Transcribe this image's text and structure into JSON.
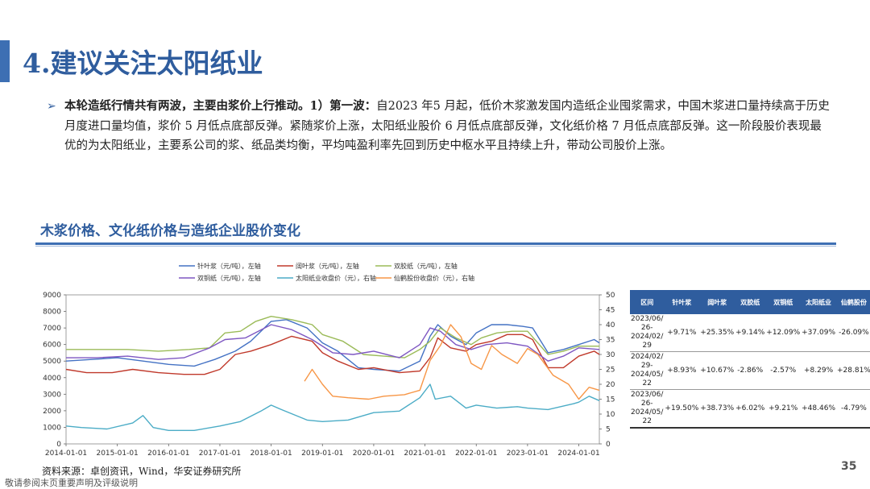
{
  "title": "4.建议关注太阳纸业",
  "bullet": {
    "bold": "本轮造纸行情共有两波，主要由浆价上行推动。1）第一波：",
    "text": "自2023 年5 月起，低价木浆激发国内造纸企业囤浆需求，中国木浆进口量持续高于历史月度进口量均值，浆价 5 月低点底部反弹。紧随浆价上涨，太阳纸业股价 6 月低点底部反弹，文化纸价格 7 月低点底部反弹。这一阶段股价表现最优的为太阳纸业，主要系公司的浆、纸品类均衡，平均吨盈利率先回到历史中枢水平且持续上升，带动公司股价上涨。"
  },
  "section_title": "木浆价格、文化纸价格与造纸企业股价变化",
  "chart_data": {
    "type": "line",
    "x_ticks": [
      "2014-01-01",
      "2015-01-01",
      "2016-01-01",
      "2017-01-01",
      "2018-01-01",
      "2019-01-01",
      "2020-01-01",
      "2021-01-01",
      "2022-01-01",
      "2023-01-01",
      "2024-01-01"
    ],
    "y_left_ticks": [
      "9000",
      "8000",
      "7000",
      "6000",
      "5000",
      "4000",
      "3000",
      "2000",
      "1000",
      "0"
    ],
    "y_right_ticks": [
      "50",
      "45",
      "40",
      "35",
      "30",
      "25",
      "20",
      "15",
      "10",
      "5",
      "0"
    ],
    "ylim_left": [
      0,
      9000
    ],
    "ylim_right": [
      0,
      50
    ],
    "x_range": [
      2014.0,
      2024.4
    ],
    "legend": [
      {
        "name": "针叶浆（元/吨），左轴",
        "color": "#4472c4"
      },
      {
        "name": "阔叶浆（元/吨），左轴",
        "color": "#c0392b"
      },
      {
        "name": "双胶纸（元/吨），左轴",
        "color": "#9bbb59"
      },
      {
        "name": "双铜纸（元/吨），左轴",
        "color": "#7e57c2"
      },
      {
        "name": "太阳纸业收盘价（元），右轴",
        "color": "#4bacc6"
      },
      {
        "name": "仙鹤股份收盘价（元），右轴",
        "color": "#f79646"
      }
    ],
    "series": [
      {
        "name": "针叶浆（元/吨），左轴",
        "axis": "left",
        "color": "#4472c4",
        "points": [
          [
            2014.0,
            5000
          ],
          [
            2014.5,
            5100
          ],
          [
            2015.0,
            5200
          ],
          [
            2015.5,
            5000
          ],
          [
            2016.0,
            4800
          ],
          [
            2016.5,
            4700
          ],
          [
            2016.9,
            5100
          ],
          [
            2017.3,
            5600
          ],
          [
            2017.6,
            6200
          ],
          [
            2018.0,
            7400
          ],
          [
            2018.3,
            7500
          ],
          [
            2018.7,
            7000
          ],
          [
            2019.0,
            6100
          ],
          [
            2019.3,
            5600
          ],
          [
            2019.7,
            4600
          ],
          [
            2020.0,
            4500
          ],
          [
            2020.5,
            4400
          ],
          [
            2020.9,
            5000
          ],
          [
            2021.1,
            6500
          ],
          [
            2021.25,
            7200
          ],
          [
            2021.5,
            6500
          ],
          [
            2021.8,
            6000
          ],
          [
            2022.0,
            6700
          ],
          [
            2022.3,
            7200
          ],
          [
            2022.6,
            7200
          ],
          [
            2022.9,
            7100
          ],
          [
            2023.1,
            7000
          ],
          [
            2023.4,
            5500
          ],
          [
            2023.7,
            5700
          ],
          [
            2024.0,
            6000
          ],
          [
            2024.3,
            6300
          ],
          [
            2024.4,
            6100
          ]
        ]
      },
      {
        "name": "阔叶浆（元/吨），左轴",
        "axis": "left",
        "color": "#c0392b",
        "points": [
          [
            2014.0,
            4500
          ],
          [
            2014.4,
            4300
          ],
          [
            2014.9,
            4300
          ],
          [
            2015.3,
            4500
          ],
          [
            2015.8,
            4300
          ],
          [
            2016.3,
            4200
          ],
          [
            2016.7,
            4200
          ],
          [
            2017.0,
            4500
          ],
          [
            2017.3,
            5400
          ],
          [
            2017.6,
            5600
          ],
          [
            2018.0,
            6000
          ],
          [
            2018.4,
            6500
          ],
          [
            2018.8,
            6200
          ],
          [
            2019.0,
            5500
          ],
          [
            2019.3,
            5000
          ],
          [
            2019.7,
            4500
          ],
          [
            2020.0,
            4600
          ],
          [
            2020.5,
            4300
          ],
          [
            2020.9,
            4400
          ],
          [
            2021.1,
            5200
          ],
          [
            2021.25,
            6400
          ],
          [
            2021.5,
            5800
          ],
          [
            2021.8,
            5600
          ],
          [
            2022.0,
            6000
          ],
          [
            2022.3,
            6200
          ],
          [
            2022.6,
            6600
          ],
          [
            2022.9,
            6600
          ],
          [
            2023.1,
            6300
          ],
          [
            2023.4,
            4600
          ],
          [
            2023.7,
            4600
          ],
          [
            2024.0,
            5300
          ],
          [
            2024.3,
            5600
          ],
          [
            2024.4,
            5400
          ]
        ]
      },
      {
        "name": "双胶纸（元/吨），左轴",
        "axis": "left",
        "color": "#9bbb59",
        "points": [
          [
            2014.0,
            5700
          ],
          [
            2014.6,
            5700
          ],
          [
            2015.2,
            5700
          ],
          [
            2015.8,
            5600
          ],
          [
            2016.4,
            5700
          ],
          [
            2016.8,
            5800
          ],
          [
            2017.1,
            6700
          ],
          [
            2017.4,
            6800
          ],
          [
            2017.7,
            7400
          ],
          [
            2018.0,
            7700
          ],
          [
            2018.4,
            7500
          ],
          [
            2018.8,
            7200
          ],
          [
            2019.0,
            6600
          ],
          [
            2019.4,
            6200
          ],
          [
            2019.8,
            5400
          ],
          [
            2020.2,
            5300
          ],
          [
            2020.6,
            5200
          ],
          [
            2020.9,
            5700
          ],
          [
            2021.1,
            6200
          ],
          [
            2021.3,
            7000
          ],
          [
            2021.6,
            6400
          ],
          [
            2021.9,
            6000
          ],
          [
            2022.1,
            6400
          ],
          [
            2022.4,
            6700
          ],
          [
            2022.7,
            6800
          ],
          [
            2023.0,
            6800
          ],
          [
            2023.4,
            5400
          ],
          [
            2023.7,
            5600
          ],
          [
            2024.0,
            5900
          ],
          [
            2024.4,
            5900
          ]
        ]
      },
      {
        "name": "双铜纸（元/吨），左轴",
        "axis": "left",
        "color": "#7e57c2",
        "points": [
          [
            2014.0,
            5200
          ],
          [
            2014.6,
            5200
          ],
          [
            2015.2,
            5300
          ],
          [
            2015.8,
            5100
          ],
          [
            2016.3,
            5200
          ],
          [
            2016.8,
            5800
          ],
          [
            2017.1,
            6300
          ],
          [
            2017.5,
            6400
          ],
          [
            2018.0,
            7200
          ],
          [
            2018.4,
            6900
          ],
          [
            2018.8,
            6300
          ],
          [
            2019.2,
            5500
          ],
          [
            2019.6,
            5400
          ],
          [
            2020.0,
            5600
          ],
          [
            2020.5,
            5200
          ],
          [
            2020.9,
            6000
          ],
          [
            2021.1,
            7000
          ],
          [
            2021.3,
            6800
          ],
          [
            2021.6,
            6000
          ],
          [
            2021.9,
            5700
          ],
          [
            2022.2,
            6000
          ],
          [
            2022.6,
            6100
          ],
          [
            2023.0,
            5900
          ],
          [
            2023.4,
            5000
          ],
          [
            2023.7,
            5300
          ],
          [
            2024.0,
            5800
          ],
          [
            2024.4,
            5700
          ]
        ]
      },
      {
        "name": "太阳纸业收盘价（元），右轴",
        "axis": "right",
        "color": "#4bacc6",
        "points": [
          [
            2014.0,
            6
          ],
          [
            2014.3,
            5.5
          ],
          [
            2014.8,
            5
          ],
          [
            2015.3,
            7
          ],
          [
            2015.5,
            9.5
          ],
          [
            2015.7,
            5.5
          ],
          [
            2016.0,
            4.5
          ],
          [
            2016.5,
            4.5
          ],
          [
            2017.0,
            6
          ],
          [
            2017.4,
            7.5
          ],
          [
            2017.8,
            11
          ],
          [
            2018.0,
            13
          ],
          [
            2018.2,
            11.5
          ],
          [
            2018.7,
            8
          ],
          [
            2019.0,
            7.5
          ],
          [
            2019.5,
            8
          ],
          [
            2020.0,
            10.5
          ],
          [
            2020.5,
            11
          ],
          [
            2020.9,
            15.5
          ],
          [
            2021.1,
            20
          ],
          [
            2021.2,
            15
          ],
          [
            2021.5,
            16
          ],
          [
            2021.8,
            12
          ],
          [
            2022.0,
            13
          ],
          [
            2022.4,
            12
          ],
          [
            2022.8,
            12.5
          ],
          [
            2023.0,
            12
          ],
          [
            2023.4,
            11.5
          ],
          [
            2023.9,
            13.5
          ],
          [
            2024.0,
            14
          ],
          [
            2024.2,
            16
          ],
          [
            2024.4,
            14.5
          ]
        ]
      },
      {
        "name": "仙鹤股份收盘价（元），右轴",
        "axis": "right",
        "color": "#f79646",
        "points": [
          [
            2018.65,
            21
          ],
          [
            2018.8,
            25
          ],
          [
            2019.0,
            20
          ],
          [
            2019.2,
            16
          ],
          [
            2019.5,
            15.5
          ],
          [
            2019.9,
            15
          ],
          [
            2020.2,
            16
          ],
          [
            2020.6,
            16.5
          ],
          [
            2020.9,
            18
          ],
          [
            2021.1,
            28
          ],
          [
            2021.3,
            33
          ],
          [
            2021.5,
            40
          ],
          [
            2021.7,
            36
          ],
          [
            2021.9,
            27
          ],
          [
            2022.1,
            25
          ],
          [
            2022.3,
            33
          ],
          [
            2022.5,
            30
          ],
          [
            2022.8,
            27
          ],
          [
            2023.0,
            32
          ],
          [
            2023.2,
            30
          ],
          [
            2023.5,
            23
          ],
          [
            2023.8,
            20
          ],
          [
            2024.0,
            15
          ],
          [
            2024.2,
            19
          ],
          [
            2024.4,
            18
          ]
        ]
      }
    ]
  },
  "table": {
    "headers": [
      "区间",
      "针叶浆",
      "阔叶浆",
      "双胶纸",
      "双铜纸",
      "太阳纸业",
      "仙鹤股份"
    ],
    "rows": [
      {
        "period": "2023/06/ 26- 2024/02/ 29",
        "values": [
          "+9.71%",
          "+25.35%",
          "+9.14%",
          "+12.09%",
          "+37.09%",
          "-26.09%"
        ]
      },
      {
        "period": "2024/02/ 29- 2024/05/ 22",
        "values": [
          "+8.93%",
          "+10.67%",
          "-2.86%",
          "-2.57%",
          "+8.29%",
          "+28.81%"
        ]
      },
      {
        "period": "2023/06/ 26- 2024/05/ 22",
        "values": [
          "+19.50%",
          "+38.73%",
          "+6.02%",
          "+9.21%",
          "+48.46%",
          "-4.79%"
        ]
      }
    ]
  },
  "source": "资料来源：卓创资讯，Wind，华安证券研究所",
  "footer_note": "敬请参阅末页重要声明及评级说明",
  "page_number": "35"
}
